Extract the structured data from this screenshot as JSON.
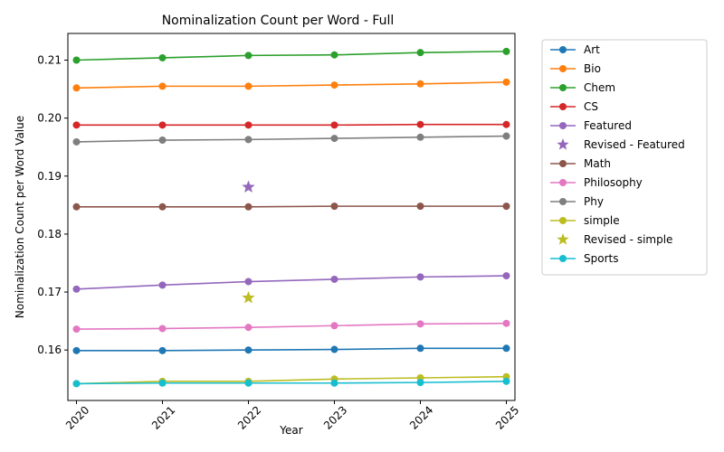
{
  "chart_data": {
    "type": "line",
    "title": "Nominalization Count per Word - Full",
    "xlabel": "Year",
    "ylabel": "Nominalization Count per Word Value",
    "x": [
      2020,
      2021,
      2022,
      2023,
      2024,
      2025
    ],
    "xlim": [
      2019.9,
      2025.1
    ],
    "ylim": [
      0.1513,
      0.2146
    ],
    "yticks": [
      0.16,
      0.17,
      0.18,
      0.19,
      0.2,
      0.21
    ],
    "ytick_labels": [
      "0.16",
      "0.17",
      "0.18",
      "0.19",
      "0.20",
      "0.21"
    ],
    "xtick_labels": [
      "2020",
      "2021",
      "2022",
      "2023",
      "2024",
      "2025"
    ],
    "grid": false,
    "legend_position": "outside-right",
    "series": [
      {
        "name": "Art",
        "color": "#1f77b4",
        "marker": "circle",
        "values": [
          0.1599,
          0.1599,
          0.16,
          0.1601,
          0.1603,
          0.1603
        ]
      },
      {
        "name": "Bio",
        "color": "#ff7f0e",
        "marker": "circle",
        "values": [
          0.2052,
          0.2055,
          0.2055,
          0.2057,
          0.2059,
          0.2062
        ]
      },
      {
        "name": "Chem",
        "color": "#2ca02c",
        "marker": "circle",
        "values": [
          0.21,
          0.2104,
          0.2108,
          0.2109,
          0.2113,
          0.2115
        ]
      },
      {
        "name": "CS",
        "color": "#d62728",
        "marker": "circle",
        "values": [
          0.1988,
          0.1988,
          0.1988,
          0.1988,
          0.1989,
          0.1989
        ]
      },
      {
        "name": "Featured",
        "color": "#9467bd",
        "marker": "circle",
        "values": [
          0.1705,
          0.1712,
          0.1718,
          0.1722,
          0.1726,
          0.1728
        ]
      },
      {
        "name": "Revised - Featured",
        "color": "#9467bd",
        "marker": "star",
        "points_only": true,
        "points": [
          [
            2022,
            0.1881
          ]
        ]
      },
      {
        "name": "Math",
        "color": "#8c564b",
        "marker": "circle",
        "values": [
          0.1847,
          0.1847,
          0.1847,
          0.1848,
          0.1848,
          0.1848
        ]
      },
      {
        "name": "Philosophy",
        "color": "#e377c2",
        "marker": "circle",
        "values": [
          0.1636,
          0.1637,
          0.1639,
          0.1642,
          0.1645,
          0.1646
        ]
      },
      {
        "name": "Phy",
        "color": "#7f7f7f",
        "marker": "circle",
        "values": [
          0.1959,
          0.1962,
          0.1963,
          0.1965,
          0.1967,
          0.1969
        ]
      },
      {
        "name": "simple",
        "color": "#bcbd22",
        "marker": "circle",
        "values": [
          0.1542,
          0.1546,
          0.1546,
          0.155,
          0.1552,
          0.1554
        ]
      },
      {
        "name": "Revised - simple",
        "color": "#bcbd22",
        "marker": "star",
        "points_only": true,
        "points": [
          [
            2022,
            0.169
          ]
        ]
      },
      {
        "name": "Sports",
        "color": "#17becf",
        "marker": "circle",
        "values": [
          0.1542,
          0.1543,
          0.1543,
          0.1543,
          0.1544,
          0.1546
        ]
      }
    ]
  }
}
